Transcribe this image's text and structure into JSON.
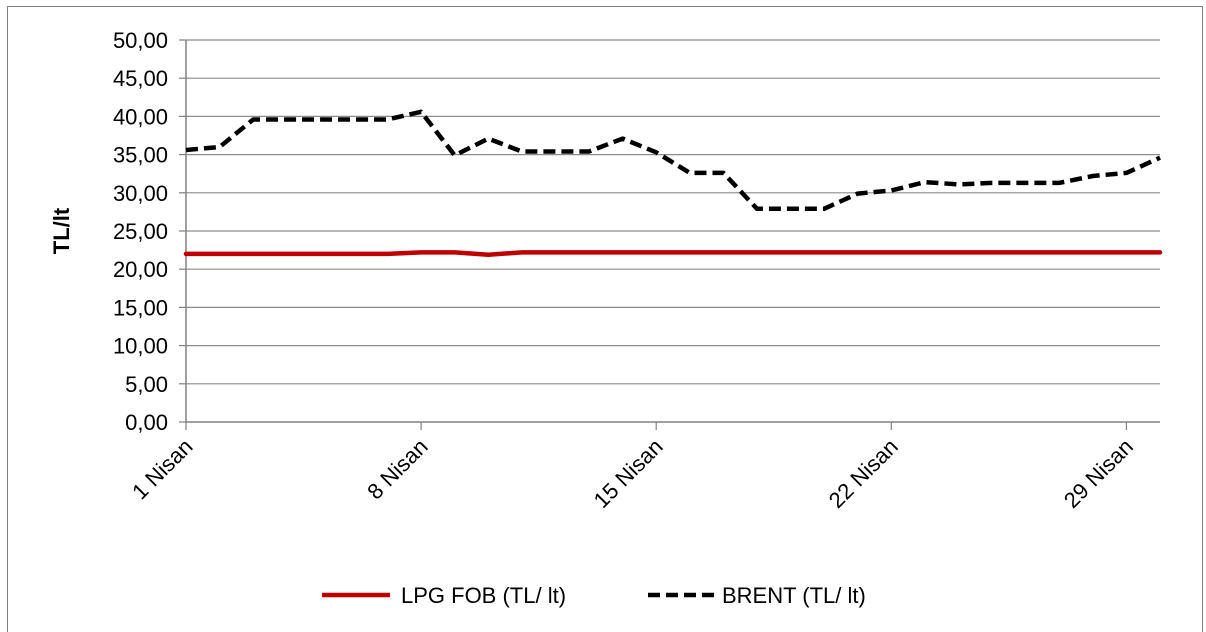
{
  "header_text": "",
  "chart_data": {
    "type": "line",
    "title": "",
    "xlabel": "",
    "ylabel": "TL/lt",
    "ylim": [
      0,
      50
    ],
    "ytick_labels": [
      "0,00",
      "5,00",
      "10,00",
      "15,00",
      "20,00",
      "25,00",
      "30,00",
      "35,00",
      "40,00",
      "45,00",
      "50,00"
    ],
    "x_domain_days": [
      1,
      30
    ],
    "xticks": [
      {
        "day": 1,
        "label": "1 Nisan"
      },
      {
        "day": 8,
        "label": "8 Nisan"
      },
      {
        "day": 15,
        "label": "15 Nisan"
      },
      {
        "day": 22,
        "label": "22 Nisan"
      },
      {
        "day": 29,
        "label": "29 Nisan"
      }
    ],
    "grid": true,
    "legend_position": "bottom",
    "series": [
      {
        "name": "LPG FOB (TL/ lt)",
        "color": "#c00000",
        "style": "solid",
        "x": [
          1,
          2,
          3,
          4,
          5,
          6,
          7,
          8,
          9,
          10,
          11,
          12,
          13,
          14,
          15,
          16,
          17,
          18,
          19,
          20,
          21,
          22,
          23,
          24,
          25,
          26,
          27,
          28,
          29,
          30
        ],
        "values": [
          22.0,
          22.0,
          22.0,
          22.0,
          22.0,
          22.0,
          22.0,
          22.2,
          22.2,
          21.9,
          22.2,
          22.2,
          22.2,
          22.2,
          22.2,
          22.2,
          22.2,
          22.2,
          22.2,
          22.2,
          22.2,
          22.2,
          22.2,
          22.2,
          22.2,
          22.2,
          22.2,
          22.2,
          22.2,
          22.2
        ]
      },
      {
        "name": "BRENT (TL/ lt)",
        "color": "#000000",
        "style": "dashed",
        "x": [
          1,
          2,
          3,
          4,
          5,
          6,
          7,
          8,
          9,
          10,
          11,
          12,
          13,
          14,
          15,
          16,
          17,
          18,
          19,
          20,
          21,
          22,
          23,
          24,
          25,
          26,
          27,
          28,
          29,
          30
        ],
        "values": [
          35.6,
          36.0,
          39.6,
          39.6,
          39.6,
          39.6,
          39.6,
          40.6,
          34.9,
          37.1,
          35.4,
          35.4,
          35.4,
          37.1,
          35.3,
          32.6,
          32.6,
          27.9,
          27.9,
          27.9,
          29.9,
          30.3,
          31.4,
          31.1,
          31.3,
          31.3,
          31.3,
          32.2,
          32.6,
          34.6
        ]
      }
    ]
  }
}
